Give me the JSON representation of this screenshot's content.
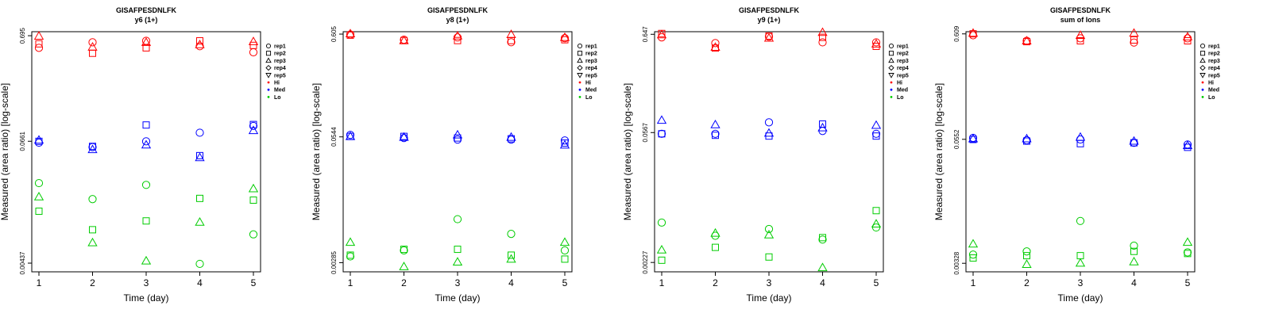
{
  "chart_data": [
    {
      "type": "scatter",
      "title": "GISAFPESDNLFK",
      "subtitle": "y6 (1+)",
      "xlabel": "Time (day)",
      "ylabel": "Measured (area ratio) [log-scale]",
      "log_y": true,
      "x_ticks": [
        1,
        2,
        3,
        4,
        5
      ],
      "y_ticks": [
        0.00437,
        0.0661,
        0.695
      ],
      "y_tick_labels": [
        "0.00437",
        "0.0661",
        "0.695"
      ],
      "ylim": [
        0.0036,
        0.76
      ],
      "series": [
        {
          "group": "Hi",
          "rep": "rep1",
          "x": [
            1,
            2,
            3,
            4,
            5
          ],
          "y": [
            0.53,
            0.6,
            0.62,
            0.55,
            0.48
          ]
        },
        {
          "group": "Hi",
          "rep": "rep2",
          "x": [
            1,
            2,
            3,
            4,
            5
          ],
          "y": [
            0.58,
            0.47,
            0.53,
            0.62,
            0.56
          ]
        },
        {
          "group": "Hi",
          "rep": "rep3",
          "x": [
            1,
            2,
            3,
            4,
            5
          ],
          "y": [
            0.69,
            0.54,
            0.6,
            0.57,
            0.61
          ]
        },
        {
          "group": "Med",
          "rep": "rep1",
          "x": [
            1,
            2,
            3,
            4,
            5
          ],
          "y": [
            0.064,
            0.058,
            0.066,
            0.08,
            0.093
          ]
        },
        {
          "group": "Med",
          "rep": "rep2",
          "x": [
            1,
            2,
            3,
            4,
            5
          ],
          "y": [
            0.066,
            0.059,
            0.095,
            0.048,
            0.096
          ]
        },
        {
          "group": "Med",
          "rep": "rep3",
          "x": [
            1,
            2,
            3,
            4,
            5
          ],
          "y": [
            0.068,
            0.055,
            0.061,
            0.046,
            0.084
          ]
        },
        {
          "group": "Lo",
          "rep": "rep1",
          "x": [
            1,
            2,
            3,
            4,
            5
          ],
          "y": [
            0.026,
            0.0182,
            0.025,
            0.0043,
            0.0083
          ]
        },
        {
          "group": "Lo",
          "rep": "rep2",
          "x": [
            1,
            2,
            3,
            4,
            5
          ],
          "y": [
            0.0139,
            0.0092,
            0.0112,
            0.0185,
            0.0178
          ]
        },
        {
          "group": "Lo",
          "rep": "rep3",
          "x": [
            1,
            2,
            3,
            4,
            5
          ],
          "y": [
            0.0192,
            0.0069,
            0.0046,
            0.0109,
            0.023
          ]
        }
      ]
    },
    {
      "type": "scatter",
      "title": "GISAFPESDNLFK",
      "subtitle": "y8 (1+)",
      "xlabel": "Time (day)",
      "ylabel": "Measured (area ratio) [log-scale]",
      "log_y": true,
      "x_ticks": [
        1,
        2,
        3,
        4,
        5
      ],
      "y_ticks": [
        0.00285,
        0.0544,
        0.605
      ],
      "y_tick_labels": [
        "0.00285",
        "0.0544",
        "0.605"
      ],
      "ylim": [
        0.0023,
        0.64
      ],
      "series": [
        {
          "group": "Hi",
          "rep": "rep1",
          "x": [
            1,
            2,
            3,
            4,
            5
          ],
          "y": [
            0.6,
            0.53,
            0.56,
            0.5,
            0.55
          ]
        },
        {
          "group": "Hi",
          "rep": "rep2",
          "x": [
            1,
            2,
            3,
            4,
            5
          ],
          "y": [
            0.59,
            0.52,
            0.52,
            0.52,
            0.53
          ]
        },
        {
          "group": "Hi",
          "rep": "rep3",
          "x": [
            1,
            2,
            3,
            4,
            5
          ],
          "y": [
            0.61,
            0.52,
            0.58,
            0.6,
            0.56
          ]
        },
        {
          "group": "Med",
          "rep": "rep1",
          "x": [
            1,
            2,
            3,
            4,
            5
          ],
          "y": [
            0.057,
            0.053,
            0.051,
            0.051,
            0.05
          ]
        },
        {
          "group": "Med",
          "rep": "rep2",
          "x": [
            1,
            2,
            3,
            4,
            5
          ],
          "y": [
            0.055,
            0.055,
            0.053,
            0.052,
            0.047
          ]
        },
        {
          "group": "Med",
          "rep": "rep3",
          "x": [
            1,
            2,
            3,
            4,
            5
          ],
          "y": [
            0.055,
            0.054,
            0.057,
            0.054,
            0.045
          ]
        },
        {
          "group": "Lo",
          "rep": "rep1",
          "x": [
            1,
            2,
            3,
            4,
            5
          ],
          "y": [
            0.0033,
            0.0038,
            0.0079,
            0.0056,
            0.0038
          ]
        },
        {
          "group": "Lo",
          "rep": "rep2",
          "x": [
            1,
            2,
            3,
            4,
            5
          ],
          "y": [
            0.0034,
            0.0039,
            0.0039,
            0.0034,
            0.0031
          ]
        },
        {
          "group": "Lo",
          "rep": "rep3",
          "x": [
            1,
            2,
            3,
            4,
            5
          ],
          "y": [
            0.0046,
            0.0026,
            0.0029,
            0.0031,
            0.0046
          ]
        }
      ]
    },
    {
      "type": "scatter",
      "title": "GISAFPESDNLFK",
      "subtitle": "y9 (1+)",
      "xlabel": "Time (day)",
      "ylabel": "Measured (area ratio) [log-scale]",
      "log_y": true,
      "x_ticks": [
        1,
        2,
        3,
        4,
        5
      ],
      "y_ticks": [
        0.00227,
        0.0567,
        0.647
      ],
      "y_tick_labels": [
        "0.00227",
        "0.0567",
        "0.647"
      ],
      "ylim": [
        0.0018,
        0.69
      ],
      "series": [
        {
          "group": "Hi",
          "rep": "rep1",
          "x": [
            1,
            2,
            3,
            4,
            5
          ],
          "y": [
            0.6,
            0.52,
            0.61,
            0.53,
            0.53
          ]
        },
        {
          "group": "Hi",
          "rep": "rep2",
          "x": [
            1,
            2,
            3,
            4,
            5
          ],
          "y": [
            0.66,
            0.46,
            0.62,
            0.6,
            0.48
          ]
        },
        {
          "group": "Hi",
          "rep": "rep3",
          "x": [
            1,
            2,
            3,
            4,
            5
          ],
          "y": [
            0.64,
            0.47,
            0.59,
            0.68,
            0.51
          ]
        },
        {
          "group": "Med",
          "rep": "rep1",
          "x": [
            1,
            2,
            3,
            4,
            5
          ],
          "y": [
            0.055,
            0.055,
            0.073,
            0.059,
            0.055
          ]
        },
        {
          "group": "Med",
          "rep": "rep2",
          "x": [
            1,
            2,
            3,
            4,
            5
          ],
          "y": [
            0.055,
            0.053,
            0.052,
            0.07,
            0.052
          ]
        },
        {
          "group": "Med",
          "rep": "rep3",
          "x": [
            1,
            2,
            3,
            4,
            5
          ],
          "y": [
            0.077,
            0.069,
            0.056,
            0.064,
            0.068
          ]
        },
        {
          "group": "Lo",
          "rep": "rep1",
          "x": [
            1,
            2,
            3,
            4,
            5
          ],
          "y": [
            0.0061,
            0.0044,
            0.0052,
            0.004,
            0.0054
          ]
        },
        {
          "group": "Lo",
          "rep": "rep2",
          "x": [
            1,
            2,
            3,
            4,
            5
          ],
          "y": [
            0.0024,
            0.0033,
            0.0026,
            0.0042,
            0.0082
          ]
        },
        {
          "group": "Lo",
          "rep": "rep3",
          "x": [
            1,
            2,
            3,
            4,
            5
          ],
          "y": [
            0.0031,
            0.0047,
            0.0045,
            0.002,
            0.0059
          ]
        }
      ]
    },
    {
      "type": "scatter",
      "title": "GISAFPESDNLFK",
      "subtitle": "sum of Ions",
      "xlabel": "Time (day)",
      "ylabel": "Measured (area ratio) [log-scale]",
      "log_y": true,
      "x_ticks": [
        1,
        2,
        3,
        4,
        5
      ],
      "y_ticks": [
        0.00328,
        0.0552,
        0.609
      ],
      "y_tick_labels": [
        "0.00328",
        "0.0552",
        "0.609"
      ],
      "ylim": [
        0.0027,
        0.64
      ],
      "series": [
        {
          "group": "Hi",
          "rep": "rep1",
          "x": [
            1,
            2,
            3,
            4,
            5
          ],
          "y": [
            0.59,
            0.52,
            0.55,
            0.5,
            0.55
          ]
        },
        {
          "group": "Hi",
          "rep": "rep2",
          "x": [
            1,
            2,
            3,
            4,
            5
          ],
          "y": [
            0.61,
            0.51,
            0.52,
            0.53,
            0.52
          ]
        },
        {
          "group": "Hi",
          "rep": "rep3",
          "x": [
            1,
            2,
            3,
            4,
            5
          ],
          "y": [
            0.62,
            0.52,
            0.59,
            0.62,
            0.57
          ]
        },
        {
          "group": "Med",
          "rep": "rep1",
          "x": [
            1,
            2,
            3,
            4,
            5
          ],
          "y": [
            0.057,
            0.054,
            0.055,
            0.051,
            0.049
          ]
        },
        {
          "group": "Med",
          "rep": "rep2",
          "x": [
            1,
            2,
            3,
            4,
            5
          ],
          "y": [
            0.055,
            0.053,
            0.05,
            0.051,
            0.046
          ]
        },
        {
          "group": "Med",
          "rep": "rep3",
          "x": [
            1,
            2,
            3,
            4,
            5
          ],
          "y": [
            0.056,
            0.056,
            0.058,
            0.053,
            0.048
          ]
        },
        {
          "group": "Lo",
          "rep": "rep1",
          "x": [
            1,
            2,
            3,
            4,
            5
          ],
          "y": [
            0.004,
            0.0043,
            0.0086,
            0.0049,
            0.0042
          ]
        },
        {
          "group": "Lo",
          "rep": "rep2",
          "x": [
            1,
            2,
            3,
            4,
            5
          ],
          "y": [
            0.0037,
            0.0039,
            0.0039,
            0.0043,
            0.0041
          ]
        },
        {
          "group": "Lo",
          "rep": "rep3",
          "x": [
            1,
            2,
            3,
            4,
            5
          ],
          "y": [
            0.0051,
            0.0032,
            0.0033,
            0.0034,
            0.0053
          ]
        }
      ]
    }
  ],
  "legend": {
    "items": [
      {
        "label": "rep1",
        "shape": "circle",
        "color": ""
      },
      {
        "label": "rep2",
        "shape": "square",
        "color": ""
      },
      {
        "label": "rep3",
        "shape": "triangle",
        "color": ""
      },
      {
        "label": "rep4",
        "shape": "diamond",
        "color": ""
      },
      {
        "label": "rep5",
        "shape": "triangle-down",
        "color": ""
      },
      {
        "label": "Hi",
        "shape": "dot",
        "color": "#ff0000"
      },
      {
        "label": "Med",
        "shape": "dot",
        "color": "#0000ff"
      },
      {
        "label": "Lo",
        "shape": "dot",
        "color": "#00cc00"
      }
    ]
  },
  "colors": {
    "Hi": "#ff0000",
    "Med": "#0000ff",
    "Lo": "#00cc00"
  }
}
